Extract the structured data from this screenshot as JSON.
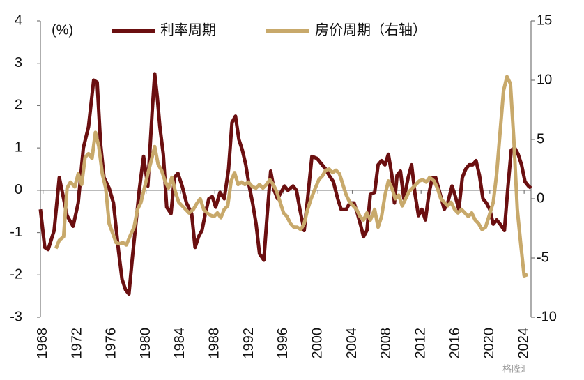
{
  "chart_data": {
    "type": "line",
    "y_unit": "(%)",
    "xlim": [
      1967.7,
      2024.8
    ],
    "xticks": [
      1968,
      1972,
      1976,
      1980,
      1984,
      1988,
      1992,
      1996,
      2000,
      2004,
      2008,
      2012,
      2016,
      2020,
      2024
    ],
    "ylim": [
      -3,
      4
    ],
    "yticks": [
      -3,
      -2,
      -1,
      0,
      1,
      2,
      3,
      4
    ],
    "y2lim": [
      -10,
      15
    ],
    "y2ticks": [
      -10,
      -5,
      0,
      5,
      10,
      15
    ],
    "legend": "top",
    "watermark": "格隆汇",
    "series": [
      {
        "name": "利率周期",
        "color": "#6b0f10",
        "axis": "y",
        "x": [
          1967.7,
          1968.2,
          1968.6,
          1969.3,
          1969.9,
          1970.3,
          1970.8,
          1971.5,
          1972.1,
          1972.7,
          1973.3,
          1973.9,
          1974.3,
          1974.7,
          1975.1,
          1975.7,
          1976.2,
          1976.8,
          1977.2,
          1977.6,
          1978.0,
          1978.4,
          1978.8,
          1979.2,
          1979.7,
          1980.2,
          1980.7,
          1981.0,
          1981.3,
          1981.6,
          1982.0,
          1982.4,
          1982.9,
          1983.3,
          1983.7,
          1984.2,
          1984.7,
          1985.3,
          1985.7,
          1986.1,
          1986.5,
          1986.9,
          1987.3,
          1987.7,
          1988.1,
          1988.6,
          1989.1,
          1989.6,
          1990.0,
          1990.4,
          1990.8,
          1991.2,
          1991.6,
          1992.0,
          1992.4,
          1992.8,
          1993.2,
          1993.7,
          1994.1,
          1994.5,
          1994.9,
          1995.3,
          1995.7,
          1996.1,
          1996.5,
          1997.1,
          1997.5,
          1997.9,
          1998.4,
          1998.8,
          1999.3,
          1999.9,
          2000.5,
          2000.9,
          2001.3,
          2001.8,
          2002.3,
          2002.7,
          2003.3,
          2003.7,
          2004.2,
          2004.6,
          2005.0,
          2005.3,
          2005.7,
          2006.1,
          2006.6,
          2007.0,
          2007.4,
          2007.8,
          2008.2,
          2008.6,
          2008.9,
          2009.2,
          2009.6,
          2010.0,
          2010.5,
          2010.9,
          2011.3,
          2011.7,
          2012.1,
          2012.5,
          2012.9,
          2013.3,
          2013.7,
          2014.1,
          2014.7,
          2015.1,
          2015.6,
          2016.0,
          2016.4,
          2016.8,
          2017.2,
          2017.6,
          2018.0,
          2018.4,
          2018.8,
          2019.2,
          2019.6,
          2020.0,
          2020.4,
          2020.8,
          2021.2,
          2021.7,
          2022.1,
          2022.5,
          2022.9,
          2023.3,
          2023.7,
          2024.1,
          2024.5,
          2024.8
        ],
        "values": [
          -0.45,
          -1.35,
          -1.4,
          -0.95,
          0.3,
          -0.1,
          -0.6,
          -0.85,
          -0.3,
          1.0,
          1.5,
          2.6,
          2.55,
          1.1,
          0.3,
          0.05,
          -0.3,
          -1.45,
          -2.1,
          -2.35,
          -2.45,
          -1.6,
          -0.8,
          0.0,
          0.8,
          0.1,
          1.85,
          2.75,
          2.2,
          1.5,
          0.85,
          -0.4,
          -0.55,
          0.3,
          0.4,
          0.1,
          -0.3,
          -0.55,
          -1.35,
          -1.1,
          -0.95,
          -0.55,
          -0.2,
          -0.15,
          -0.4,
          -0.05,
          -0.2,
          0.5,
          1.6,
          1.75,
          1.2,
          0.95,
          0.6,
          0.1,
          -0.3,
          -0.8,
          -1.5,
          -1.65,
          -0.55,
          0.45,
          0.0,
          -0.2,
          -0.05,
          0.1,
          0.0,
          0.1,
          0.0,
          -0.45,
          -0.95,
          -0.2,
          0.8,
          0.75,
          0.6,
          0.5,
          0.35,
          0.2,
          -0.2,
          -0.45,
          -0.45,
          -0.3,
          -0.3,
          -0.55,
          -0.85,
          -1.1,
          -0.95,
          -0.1,
          -0.05,
          0.6,
          0.7,
          0.6,
          0.85,
          0.35,
          -0.3,
          0.35,
          0.45,
          -0.2,
          0.3,
          0.6,
          -0.1,
          -0.6,
          -0.45,
          -0.7,
          -0.1,
          0.3,
          0.3,
          0.0,
          -0.45,
          -0.3,
          0.1,
          -0.15,
          -0.45,
          0.3,
          0.5,
          0.6,
          0.6,
          0.7,
          0.35,
          -0.2,
          -0.3,
          -0.45,
          -0.8,
          -0.7,
          -0.8,
          -0.95,
          0.05,
          0.95,
          1.0,
          0.85,
          0.6,
          0.2,
          0.1,
          0.05
        ]
      },
      {
        "name": "房价周期（右轴）",
        "color": "#c8a96b",
        "axis": "y2",
        "x": [
          1969.5,
          1969.9,
          1970.4,
          1970.8,
          1971.2,
          1971.7,
          1972.1,
          1972.5,
          1972.9,
          1973.3,
          1973.7,
          1974.1,
          1974.5,
          1974.9,
          1975.3,
          1975.7,
          1976.1,
          1976.5,
          1976.9,
          1977.3,
          1977.7,
          1978.1,
          1978.6,
          1979.0,
          1979.4,
          1979.8,
          1980.2,
          1980.6,
          1981.0,
          1981.4,
          1981.8,
          1982.2,
          1982.6,
          1983.0,
          1983.4,
          1983.8,
          1984.2,
          1984.6,
          1985.0,
          1985.5,
          1985.9,
          1986.3,
          1986.7,
          1987.1,
          1987.5,
          1987.9,
          1988.3,
          1988.7,
          1989.1,
          1989.5,
          1989.9,
          1990.3,
          1990.7,
          1991.1,
          1991.5,
          1991.9,
          1992.4,
          1992.8,
          1993.2,
          1993.6,
          1994.0,
          1994.4,
          1994.8,
          1995.2,
          1995.6,
          1996.0,
          1996.4,
          1996.8,
          1997.2,
          1997.6,
          1998.0,
          1998.4,
          1998.8,
          1999.2,
          1999.7,
          2000.1,
          2000.5,
          2000.9,
          2001.3,
          2001.7,
          2002.1,
          2002.5,
          2002.9,
          2003.3,
          2003.7,
          2004.1,
          2004.5,
          2004.9,
          2005.3,
          2005.7,
          2006.1,
          2006.6,
          2007.0,
          2007.4,
          2007.8,
          2008.2,
          2008.6,
          2009.0,
          2009.4,
          2009.8,
          2010.2,
          2010.6,
          2011.0,
          2011.4,
          2011.8,
          2012.2,
          2012.6,
          2013.0,
          2013.5,
          2013.9,
          2014.3,
          2014.7,
          2015.1,
          2015.5,
          2015.9,
          2016.3,
          2016.7,
          2017.1,
          2017.5,
          2017.9,
          2018.3,
          2018.7,
          2019.1,
          2019.5,
          2019.9,
          2020.4,
          2020.8,
          2021.2,
          2021.6,
          2022.0,
          2022.4,
          2022.8,
          2023.2,
          2023.6,
          2024.0,
          2024.4
        ],
        "values": [
          -4.2,
          -3.5,
          -3.2,
          0.9,
          1.4,
          1.0,
          2.1,
          1.2,
          3.5,
          3.8,
          3.4,
          5.6,
          4.4,
          2.1,
          0.9,
          -2.1,
          -2.9,
          -3.7,
          -3.8,
          -3.7,
          -3.9,
          -3.2,
          -2.4,
          -0.9,
          -0.3,
          0.9,
          2.1,
          3.2,
          4.4,
          2.9,
          2.4,
          1.5,
          0.9,
          1.8,
          0.6,
          -0.3,
          -0.6,
          -0.9,
          -1.2,
          -0.9,
          -0.4,
          0.0,
          -0.9,
          -1.2,
          -1.4,
          -1.5,
          -1.2,
          -1.6,
          -0.9,
          -0.6,
          1.5,
          2.2,
          1.2,
          1.4,
          1.2,
          1.4,
          1.0,
          0.9,
          1.2,
          0.9,
          1.2,
          1.6,
          1.2,
          0.6,
          -0.3,
          -1.2,
          -1.5,
          -2.1,
          -2.4,
          -2.4,
          -2.6,
          -2.1,
          -0.9,
          0.0,
          0.9,
          1.6,
          1.9,
          2.4,
          2.5,
          2.2,
          2.4,
          2.1,
          1.2,
          0.3,
          -0.3,
          -0.6,
          -0.9,
          -1.5,
          -1.8,
          -1.2,
          -1.8,
          -0.9,
          -2.4,
          -1.5,
          0.3,
          1.5,
          0.9,
          0.0,
          0.3,
          -0.6,
          0.0,
          0.6,
          0.9,
          1.2,
          1.5,
          1.6,
          1.4,
          1.8,
          1.5,
          0.9,
          0.0,
          -0.3,
          -0.6,
          -0.3,
          -0.9,
          -1.2,
          -0.9,
          -1.2,
          -1.5,
          -1.2,
          -1.8,
          -2.1,
          -2.6,
          -2.4,
          -1.5,
          -0.3,
          2.1,
          5.6,
          9.1,
          10.3,
          9.7,
          5.0,
          -0.9,
          -3.8,
          -6.5,
          -6.4
        ]
      }
    ]
  }
}
